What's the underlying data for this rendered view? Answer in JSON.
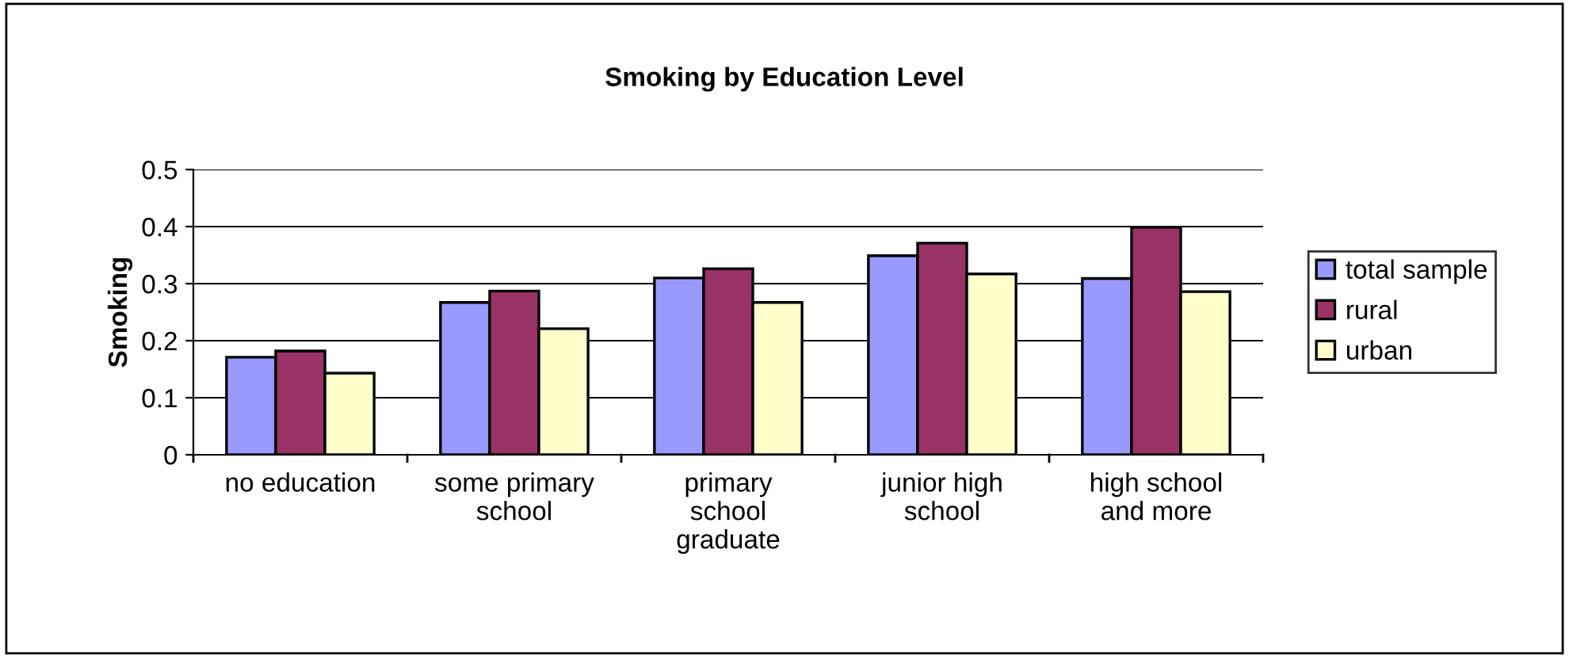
{
  "chart_data": {
    "type": "bar",
    "title": "Smoking by Education Level",
    "ylabel": "Smoking",
    "categories": [
      "no education",
      "some primary\nschool",
      "primary\nschool\ngraduate",
      "junior high\nschool",
      "high school\nand more"
    ],
    "series": [
      {
        "name": "total sample",
        "color": "#9999ff",
        "values": [
          0.171,
          0.267,
          0.31,
          0.349,
          0.309
        ]
      },
      {
        "name": "rural",
        "color": "#993366",
        "values": [
          0.182,
          0.287,
          0.326,
          0.371,
          0.399
        ]
      },
      {
        "name": "urban",
        "color": "#ffffcc",
        "values": [
          0.143,
          0.221,
          0.267,
          0.317,
          0.286
        ]
      }
    ],
    "ylim": [
      0,
      0.5
    ],
    "yticks": [
      0,
      0.1,
      0.2,
      0.3,
      0.4,
      0.5
    ],
    "grid": "y",
    "legend": "right"
  }
}
